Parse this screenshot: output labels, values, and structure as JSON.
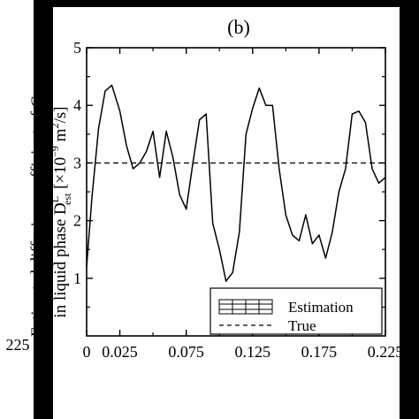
{
  "panel_label": "(b)",
  "left_clip": {
    "tick_fragment": "225"
  },
  "right_clip": {
    "ylabel_fragment": "Estimated diffusion coefficient of Cu"
  },
  "colors": {
    "background": "#ffffff",
    "ink": "#000000",
    "border_band": "#000000"
  },
  "chart_data": {
    "type": "line",
    "xlim": [
      0,
      0.225
    ],
    "ylim": [
      0,
      5
    ],
    "grid": false,
    "legend_position": "bottom-right",
    "ylabel": {
      "line1": "Estimated diffusion coefficient of Cu",
      "line2_prefix": "in liquid phase D",
      "line2_sup": "L",
      "line2_sub": "est",
      "line2_bracket_open": " [×10",
      "line2_exp": "−9",
      "line2_unit": " m",
      "line2_unit_exp": "2",
      "line2_close": "/s]"
    },
    "xticks": [
      {
        "value": 0,
        "label": "0"
      },
      {
        "value": 0.025,
        "label": "0.025"
      },
      {
        "value": 0.075,
        "label": "0.075"
      },
      {
        "value": 0.125,
        "label": "0.125"
      },
      {
        "value": 0.175,
        "label": "0.175"
      },
      {
        "value": 0.225,
        "label": "0.225"
      }
    ],
    "xminor": [
      0.05,
      0.1,
      0.15,
      0.2
    ],
    "yticks": [
      {
        "value": 1,
        "label": "1"
      },
      {
        "value": 2,
        "label": "2"
      },
      {
        "value": 3,
        "label": "3"
      },
      {
        "value": 4,
        "label": "4"
      },
      {
        "value": 5,
        "label": "5"
      }
    ],
    "series": [
      {
        "name": "Estimation",
        "style": "solid",
        "x": [
          0,
          0.004,
          0.009,
          0.014,
          0.019,
          0.025,
          0.03,
          0.035,
          0.04,
          0.045,
          0.05,
          0.055,
          0.06,
          0.065,
          0.07,
          0.075,
          0.08,
          0.085,
          0.09,
          0.095,
          0.1,
          0.105,
          0.11,
          0.115,
          0.12,
          0.125,
          0.13,
          0.135,
          0.14,
          0.145,
          0.15,
          0.155,
          0.16,
          0.165,
          0.17,
          0.175,
          0.18,
          0.185,
          0.19,
          0.195,
          0.2,
          0.205,
          0.21,
          0.215,
          0.22,
          0.225
        ],
        "y": [
          1.2,
          2.4,
          3.6,
          4.25,
          4.35,
          3.9,
          3.3,
          2.9,
          3.0,
          3.2,
          3.55,
          2.75,
          3.55,
          3.1,
          2.45,
          2.2,
          3.0,
          3.75,
          3.85,
          1.95,
          1.5,
          0.95,
          1.1,
          1.8,
          3.5,
          3.95,
          4.3,
          4.0,
          4.0,
          2.9,
          2.1,
          1.75,
          1.65,
          2.1,
          1.6,
          1.75,
          1.35,
          1.8,
          2.5,
          2.9,
          3.85,
          3.9,
          3.7,
          2.9,
          2.65,
          2.75
        ]
      },
      {
        "name": "True",
        "style": "dashed",
        "x": [
          0,
          0.225
        ],
        "y": [
          3.0,
          3.0
        ]
      }
    ]
  }
}
